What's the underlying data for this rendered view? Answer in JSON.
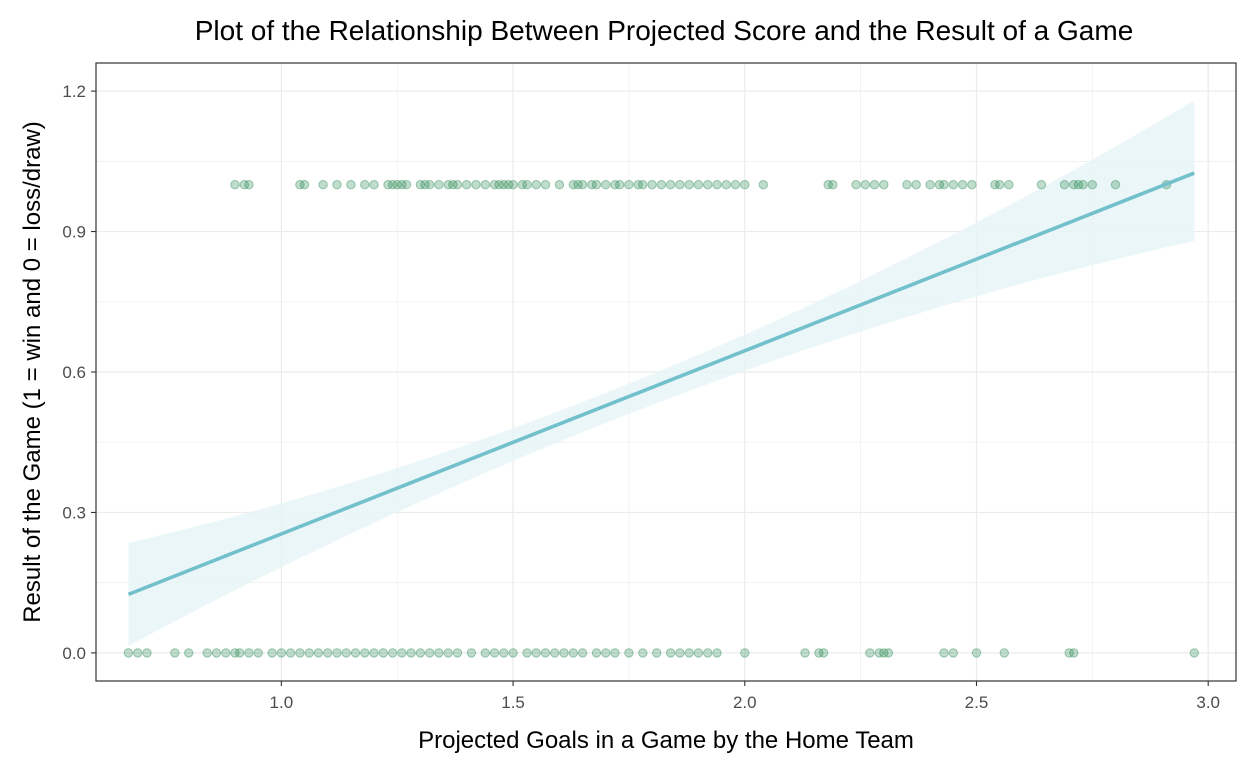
{
  "chart_data": {
    "type": "scatter",
    "title": "Plot of the Relationship Between Projected Score and the Result of a Game",
    "xlabel": "Projected Goals in a Game by the Home Team",
    "ylabel": "Result of the Game (1 = win and 0 = loss/draw)",
    "xlim": [
      0.6,
      3.06
    ],
    "ylim": [
      -0.06,
      1.26
    ],
    "x_ticks": [
      1.0,
      1.5,
      2.0,
      2.5,
      3.0
    ],
    "x_tick_labels": [
      "1.0",
      "1.5",
      "2.0",
      "2.5",
      "3.0"
    ],
    "y_ticks": [
      0.0,
      0.3,
      0.6,
      0.9,
      1.2
    ],
    "y_tick_labels": [
      "0.0",
      "0.3",
      "0.6",
      "0.9",
      "1.2"
    ],
    "grid": true,
    "colors": {
      "points": "#2e8b57",
      "fit_line": "#72c0cc",
      "ribbon": "#e6f5f6",
      "grid": "#ebebeb",
      "panel_border": "#333333"
    },
    "series": [
      {
        "kind": "points",
        "y": 1,
        "x": [
          0.9,
          0.92,
          0.93,
          1.04,
          1.05,
          1.09,
          1.12,
          1.15,
          1.18,
          1.2,
          1.23,
          1.24,
          1.25,
          1.26,
          1.27,
          1.3,
          1.31,
          1.32,
          1.34,
          1.36,
          1.37,
          1.38,
          1.4,
          1.42,
          1.44,
          1.46,
          1.47,
          1.48,
          1.49,
          1.5,
          1.52,
          1.53,
          1.55,
          1.57,
          1.6,
          1.63,
          1.64,
          1.65,
          1.67,
          1.68,
          1.7,
          1.72,
          1.73,
          1.75,
          1.77,
          1.78,
          1.8,
          1.82,
          1.84,
          1.86,
          1.88,
          1.9,
          1.92,
          1.94,
          1.96,
          1.98,
          2.0,
          2.04,
          2.18,
          2.19,
          2.24,
          2.26,
          2.28,
          2.3,
          2.35,
          2.37,
          2.4,
          2.42,
          2.43,
          2.45,
          2.47,
          2.49,
          2.54,
          2.55,
          2.57,
          2.64,
          2.69,
          2.71,
          2.72,
          2.73,
          2.75,
          2.8,
          2.91
        ]
      },
      {
        "kind": "points",
        "y": 0,
        "x": [
          0.67,
          0.69,
          0.71,
          0.77,
          0.8,
          0.84,
          0.86,
          0.88,
          0.9,
          0.91,
          0.93,
          0.95,
          0.98,
          1.0,
          1.02,
          1.04,
          1.06,
          1.08,
          1.1,
          1.12,
          1.14,
          1.16,
          1.18,
          1.2,
          1.22,
          1.24,
          1.26,
          1.28,
          1.3,
          1.32,
          1.34,
          1.36,
          1.38,
          1.41,
          1.44,
          1.46,
          1.48,
          1.5,
          1.53,
          1.55,
          1.57,
          1.59,
          1.61,
          1.63,
          1.65,
          1.68,
          1.7,
          1.72,
          1.75,
          1.78,
          1.81,
          1.84,
          1.86,
          1.88,
          1.9,
          1.92,
          1.94,
          2.0,
          2.13,
          2.16,
          2.17,
          2.27,
          2.29,
          2.3,
          2.31,
          2.43,
          2.45,
          2.5,
          2.56,
          2.7,
          2.71,
          2.97
        ]
      },
      {
        "kind": "linear_fit",
        "x": [
          0.67,
          2.97
        ],
        "y": [
          0.125,
          1.025
        ]
      },
      {
        "kind": "confidence_band",
        "x": [
          0.67,
          1.5,
          2.97
        ],
        "lower": [
          0.015,
          0.41,
          0.88
        ],
        "upper": [
          0.235,
          0.48,
          1.18
        ]
      }
    ]
  }
}
